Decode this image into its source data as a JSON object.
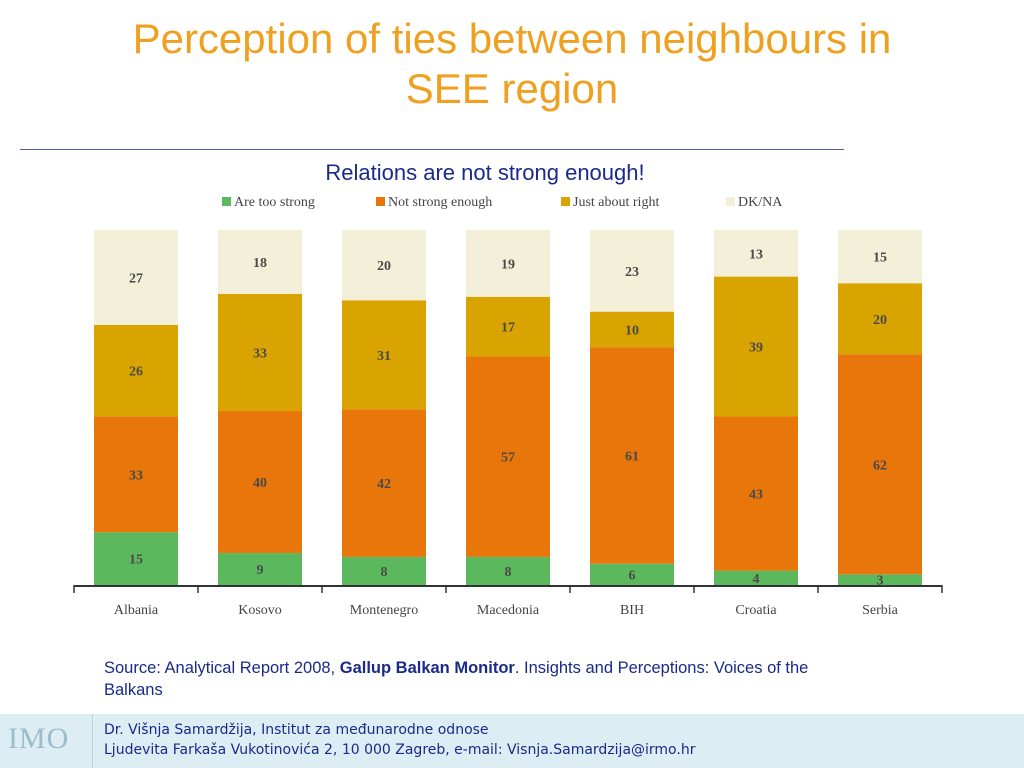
{
  "slide": {
    "title_line1": "Perception of ties between neighbours in",
    "title_line2": "SEE region",
    "subtitle": "Relations are not strong enough!"
  },
  "chart_data": {
    "type": "bar",
    "stacked": true,
    "categories": [
      "Albania",
      "Kosovo",
      "Montenegro",
      "Macedonia",
      "BIH",
      "Croatia",
      "Serbia"
    ],
    "series": [
      {
        "name": "Are too strong",
        "color": "#5cb85c",
        "values": [
          15,
          9,
          8,
          8,
          6,
          4,
          3
        ]
      },
      {
        "name": "Not strong enough",
        "color": "#e8760a",
        "values": [
          33,
          40,
          42,
          57,
          61,
          43,
          62
        ]
      },
      {
        "name": "Just about right",
        "color": "#d9a300",
        "values": [
          26,
          33,
          31,
          17,
          10,
          39,
          20
        ]
      },
      {
        "name": "DK/NA",
        "color": "#f3efd8",
        "values": [
          27,
          18,
          20,
          19,
          23,
          13,
          15
        ]
      }
    ],
    "legend_position": "top",
    "grid": false
  },
  "source": {
    "prefix": "Source: Analytical Report 2008, ",
    "bold": "Gallup Balkan Monitor",
    "suffix": ". Insights and Perceptions: Voices of the Balkans"
  },
  "footer": {
    "logo_text": "IMO",
    "line1": "Dr. Višnja Samardžija, Institut za međunarodne odnose",
    "line2": "Ljudevita Farkaša Vukotinovića 2, 10 000 Zagreb, e-mail: Visnja.Samardzija@irmo.hr"
  }
}
